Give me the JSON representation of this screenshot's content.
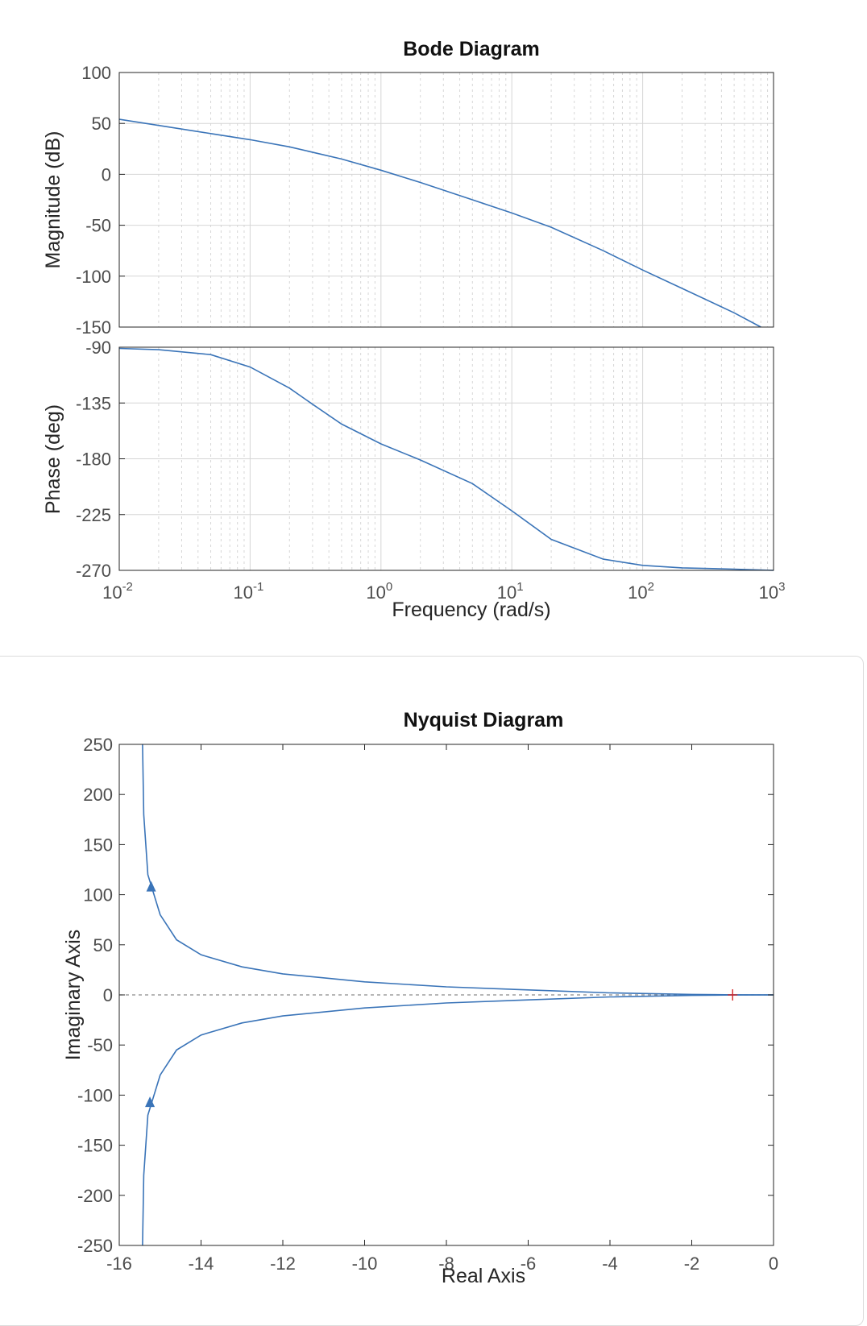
{
  "colors": {
    "series": "#3a74b8",
    "critical_point": "#d62728",
    "axes": "#262626",
    "grid": "#d6d6d6",
    "tick_label": "#4d4d4d"
  },
  "chart_data": [
    {
      "type": "line",
      "title": "Bode Diagram",
      "xlabel": "Frequency  (rad/s)",
      "xscale": "log",
      "xlim": [
        0.01,
        1000
      ],
      "x_ticks": [
        {
          "base": "10",
          "exp": "-2"
        },
        {
          "base": "10",
          "exp": "-1"
        },
        {
          "base": "10",
          "exp": "0"
        },
        {
          "base": "10",
          "exp": "1"
        },
        {
          "base": "10",
          "exp": "2"
        },
        {
          "base": "10",
          "exp": "3"
        }
      ],
      "grid": true,
      "panels": [
        {
          "name": "magnitude",
          "ylabel": "Magnitude (dB)",
          "ylim": [
            -150,
            100
          ],
          "yticks": [
            "100",
            "50",
            "0",
            "-50",
            "-100",
            "-150"
          ],
          "x": [
            0.01,
            0.02,
            0.05,
            0.1,
            0.2,
            0.5,
            1,
            2,
            5,
            10,
            20,
            50,
            100,
            200,
            500,
            800
          ],
          "y": [
            54,
            48,
            40,
            34,
            27,
            15,
            4,
            -8,
            -25,
            -38,
            -52,
            -75,
            -94,
            -112,
            -136,
            -150
          ]
        },
        {
          "name": "phase",
          "ylabel": "Phase (deg)",
          "ylim": [
            -270,
            -90
          ],
          "yticks": [
            "-90",
            "-135",
            "-180",
            "-225",
            "-270"
          ],
          "x": [
            0.01,
            0.02,
            0.05,
            0.1,
            0.2,
            0.3,
            0.5,
            1,
            2,
            5,
            10,
            20,
            50,
            100,
            200,
            500,
            1000
          ],
          "y": [
            -91,
            -92,
            -96,
            -106,
            -123,
            -136,
            -152,
            -168,
            -181,
            -200,
            -222,
            -245,
            -261,
            -266,
            -268,
            -269,
            -270
          ]
        }
      ]
    },
    {
      "type": "line",
      "title": "Nyquist Diagram",
      "xlabel": "Real Axis",
      "ylabel": "Imaginary Axis",
      "xlim": [
        -16,
        0
      ],
      "ylim": [
        -250,
        250
      ],
      "xticks": [
        "-16",
        "-14",
        "-12",
        "-10",
        "-8",
        "-6",
        "-4",
        "-2",
        "0"
      ],
      "yticks": [
        "250",
        "200",
        "150",
        "100",
        "50",
        "0",
        "-50",
        "-100",
        "-150",
        "-200",
        "-250"
      ],
      "series": [
        {
          "x": [
            -15.43,
            -15.4,
            -15.3,
            -15.0,
            -14.6,
            -14.0,
            -13.0,
            -12.0,
            -10.0,
            -8.0,
            -6.0,
            -4.0,
            -2.0,
            -1.0,
            0.0
          ],
          "y": [
            250,
            180,
            120,
            80,
            55,
            40,
            28,
            21,
            13,
            8,
            5,
            2,
            0.5,
            0.1,
            0
          ]
        },
        {
          "x": [
            -15.43,
            -15.4,
            -15.3,
            -15.0,
            -14.6,
            -14.0,
            -13.0,
            -12.0,
            -10.0,
            -8.0,
            -6.0,
            -4.0,
            -2.0,
            -1.0,
            0.0
          ],
          "y": [
            -250,
            -180,
            -120,
            -80,
            -55,
            -40,
            -28,
            -21,
            -13,
            -8,
            -5,
            -2,
            -0.5,
            -0.1,
            0
          ]
        }
      ],
      "arrows": [
        {
          "x": -15.22,
          "y": 108,
          "direction": "up"
        },
        {
          "x": -15.25,
          "y": -107,
          "direction": "up"
        }
      ],
      "critical_point": {
        "x": -1,
        "y": 0
      },
      "zero_line": true
    }
  ]
}
